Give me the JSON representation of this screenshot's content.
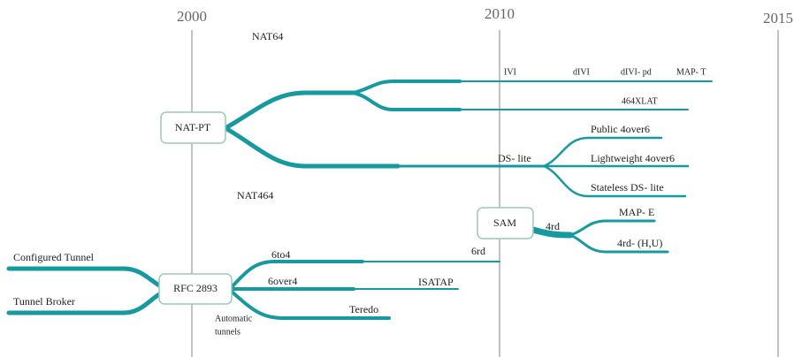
{
  "timeline": {
    "years": [
      "2000",
      "2010",
      "2015"
    ]
  },
  "nodes": {
    "nat_pt": "NAT-PT",
    "sam": "SAM",
    "rfc2893": "RFC 2893"
  },
  "labels": {
    "nat64": "NAT64",
    "nat464": "NAT464",
    "ivi": "IVI",
    "divi": "dIVI",
    "divi_pd": "dIVI- pd",
    "map_t": "MAP- T",
    "xlat": "464XLAT",
    "ds_lite": "DS- lite",
    "public": "Public 4over6",
    "lightweight": "Lightweight 4over6",
    "stateless": "Stateless DS- lite",
    "rd4": "4rd",
    "map_e": "MAP- E",
    "rd4hu": "4rd- (H,U)",
    "rd6": "6rd",
    "to4": "6to4",
    "over4": "6over4",
    "isatap": "ISATAP",
    "teredo": "Teredo",
    "configured": "Configured Tunnel",
    "broker": "Tunnel Broker",
    "automatic": [
      "Automatic",
      "tunnels"
    ]
  }
}
